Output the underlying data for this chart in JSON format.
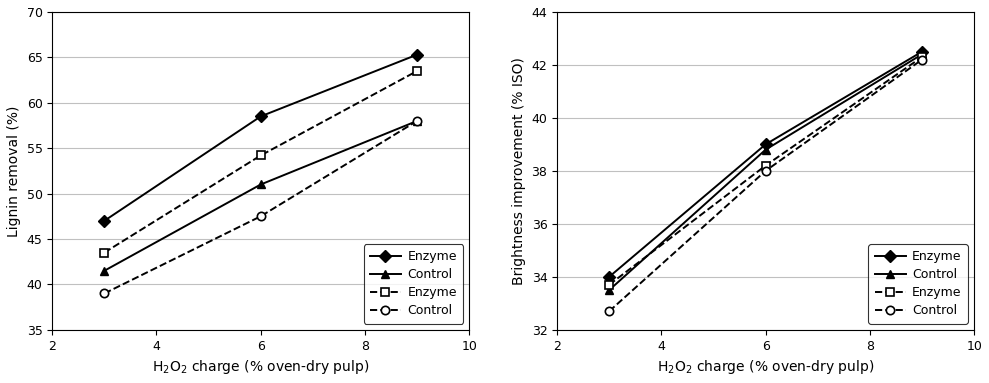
{
  "x": [
    3,
    6,
    9
  ],
  "left": {
    "solid_enzyme": [
      47.0,
      58.5,
      65.3
    ],
    "solid_control": [
      41.5,
      51.0,
      58.0
    ],
    "dash_enzyme": [
      43.5,
      54.2,
      63.5
    ],
    "dash_control": [
      39.0,
      47.5,
      58.0
    ],
    "ylabel": "Lignin removal (%)",
    "ylim": [
      35,
      70
    ],
    "yticks": [
      35,
      40,
      45,
      50,
      55,
      60,
      65,
      70
    ]
  },
  "right": {
    "solid_enzyme": [
      34.0,
      39.0,
      42.5
    ],
    "solid_control": [
      33.5,
      38.8,
      42.4
    ],
    "dash_enzyme": [
      33.7,
      38.2,
      42.3
    ],
    "dash_control": [
      32.7,
      38.0,
      42.2
    ],
    "ylabel": "Brightness improvement (% ISO)",
    "ylim": [
      32,
      44
    ],
    "yticks": [
      32,
      34,
      36,
      38,
      40,
      42,
      44
    ]
  },
  "xlim": [
    2,
    10
  ],
  "xticks": [
    2,
    4,
    6,
    8,
    10
  ],
  "color": "#000000",
  "linewidth": 1.4,
  "markersize": 6,
  "fontsize_label": 10,
  "fontsize_tick": 9,
  "fontsize_legend": 9,
  "grid_color": "#c0c0c0",
  "grid_linewidth": 0.8
}
